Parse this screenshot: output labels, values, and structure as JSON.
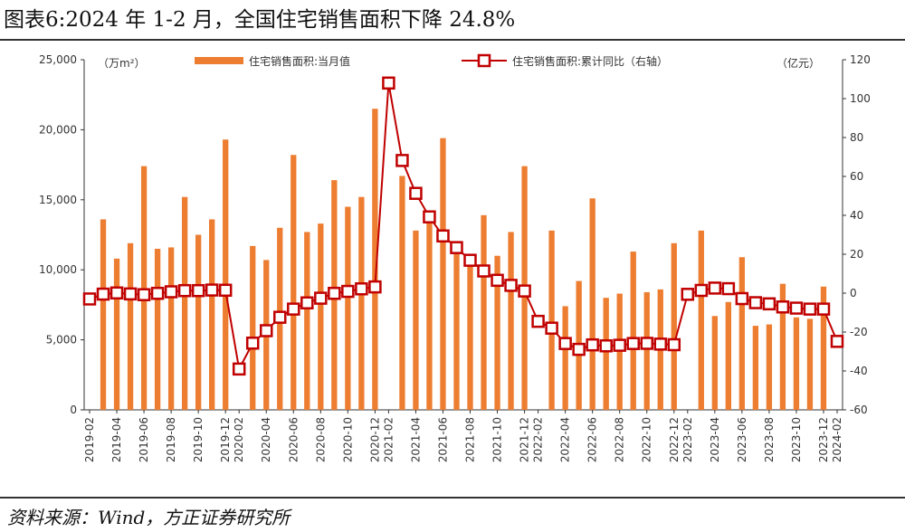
{
  "title": "图表6:2024 年 1-2 月，全国住宅销售面积下降 24.8%",
  "source": "资料来源：Wind，方正证券研究所",
  "colors": {
    "bar": "#ED7D31",
    "line": "#C00000",
    "marker_fill": "#ffffff"
  },
  "chart_data": {
    "type": "bar",
    "title": "图表6:2024 年 1-2 月，全国住宅销售面积下降 24.8%",
    "left_axis": {
      "unit": "（万m²）",
      "min": 0,
      "max": 25000,
      "ticks": [
        "0",
        "5,000",
        "10,000",
        "15,000",
        "20,000",
        "25,000"
      ]
    },
    "right_axis": {
      "unit": "（亿元）",
      "min": -60,
      "max": 120,
      "ticks": [
        "-60",
        "-40",
        "-20",
        "0",
        "20",
        "40",
        "60",
        "80",
        "100",
        "120"
      ]
    },
    "legend": {
      "position": "top",
      "bar_label": "住宅销售面积:当月值",
      "line_label": "住宅销售面积:累计同比（右轴）"
    },
    "x_tick_labels": [
      "2019-02",
      "2019-04",
      "2019-06",
      "2019-08",
      "2019-10",
      "2019-12",
      "2020-02",
      "2020-04",
      "2020-06",
      "2020-08",
      "2020-10",
      "2020-12",
      "2021-02",
      "2021-04",
      "2021-06",
      "2021-08",
      "2021-10",
      "2021-12",
      "2022-02",
      "2022-04",
      "2022-06",
      "2022-08",
      "2022-10",
      "2022-12",
      "2023-02",
      "2023-04",
      "2023-06",
      "2023-08",
      "2023-10",
      "2023-12",
      "2024-02"
    ],
    "months": [
      "2019-02",
      "2019-03",
      "2019-04",
      "2019-05",
      "2019-06",
      "2019-07",
      "2019-08",
      "2019-09",
      "2019-10",
      "2019-11",
      "2019-12",
      "2020-02",
      "2020-03",
      "2020-04",
      "2020-05",
      "2020-06",
      "2020-07",
      "2020-08",
      "2020-09",
      "2020-10",
      "2020-11",
      "2020-12",
      "2021-02",
      "2021-03",
      "2021-04",
      "2021-05",
      "2021-06",
      "2021-07",
      "2021-08",
      "2021-09",
      "2021-10",
      "2021-11",
      "2021-12",
      "2022-02",
      "2022-03",
      "2022-04",
      "2022-05",
      "2022-06",
      "2022-07",
      "2022-08",
      "2022-09",
      "2022-10",
      "2022-11",
      "2022-12",
      "2023-02",
      "2023-03",
      "2023-04",
      "2023-05",
      "2023-06",
      "2023-07",
      "2023-08",
      "2023-09",
      "2023-10",
      "2023-11",
      "2023-12",
      "2024-02"
    ],
    "series": [
      {
        "name": "住宅销售面积:当月值",
        "type": "bar",
        "axis": "left",
        "values": [
          null,
          13600,
          10800,
          11900,
          17400,
          11500,
          11600,
          15200,
          12500,
          13600,
          19300,
          null,
          11700,
          10700,
          13000,
          18200,
          12700,
          13300,
          16400,
          14500,
          15200,
          21500,
          null,
          16700,
          12800,
          13800,
          19400,
          11600,
          11100,
          13900,
          11000,
          12700,
          17400,
          null,
          12800,
          7400,
          9200,
          15100,
          8000,
          8300,
          11300,
          8400,
          8600,
          11900,
          null,
          12800,
          6700,
          7700,
          10900,
          6000,
          6100,
          9000,
          6600,
          6500,
          8800,
          null
        ]
      },
      {
        "name": "住宅销售面积:累计同比（右轴）",
        "type": "line",
        "axis": "right",
        "values": [
          -3.0,
          -0.5,
          0.1,
          -0.4,
          -0.8,
          -0.1,
          0.7,
          1.3,
          1.3,
          1.6,
          1.5,
          -39.0,
          -25.7,
          -19.3,
          -12.4,
          -8.2,
          -5.0,
          -2.6,
          -0.1,
          0.9,
          2.2,
          3.2,
          108.0,
          68.2,
          51.3,
          39.2,
          29.4,
          23.4,
          16.9,
          11.4,
          6.6,
          4.0,
          1.1,
          -14.5,
          -18.0,
          -25.9,
          -28.9,
          -26.6,
          -27.1,
          -26.8,
          -25.9,
          -25.8,
          -26.2,
          -26.5,
          -0.6,
          1.4,
          2.6,
          2.3,
          -2.8,
          -4.9,
          -5.5,
          -7.1,
          -7.7,
          -8.2,
          -8.2,
          -24.8
        ]
      }
    ]
  }
}
